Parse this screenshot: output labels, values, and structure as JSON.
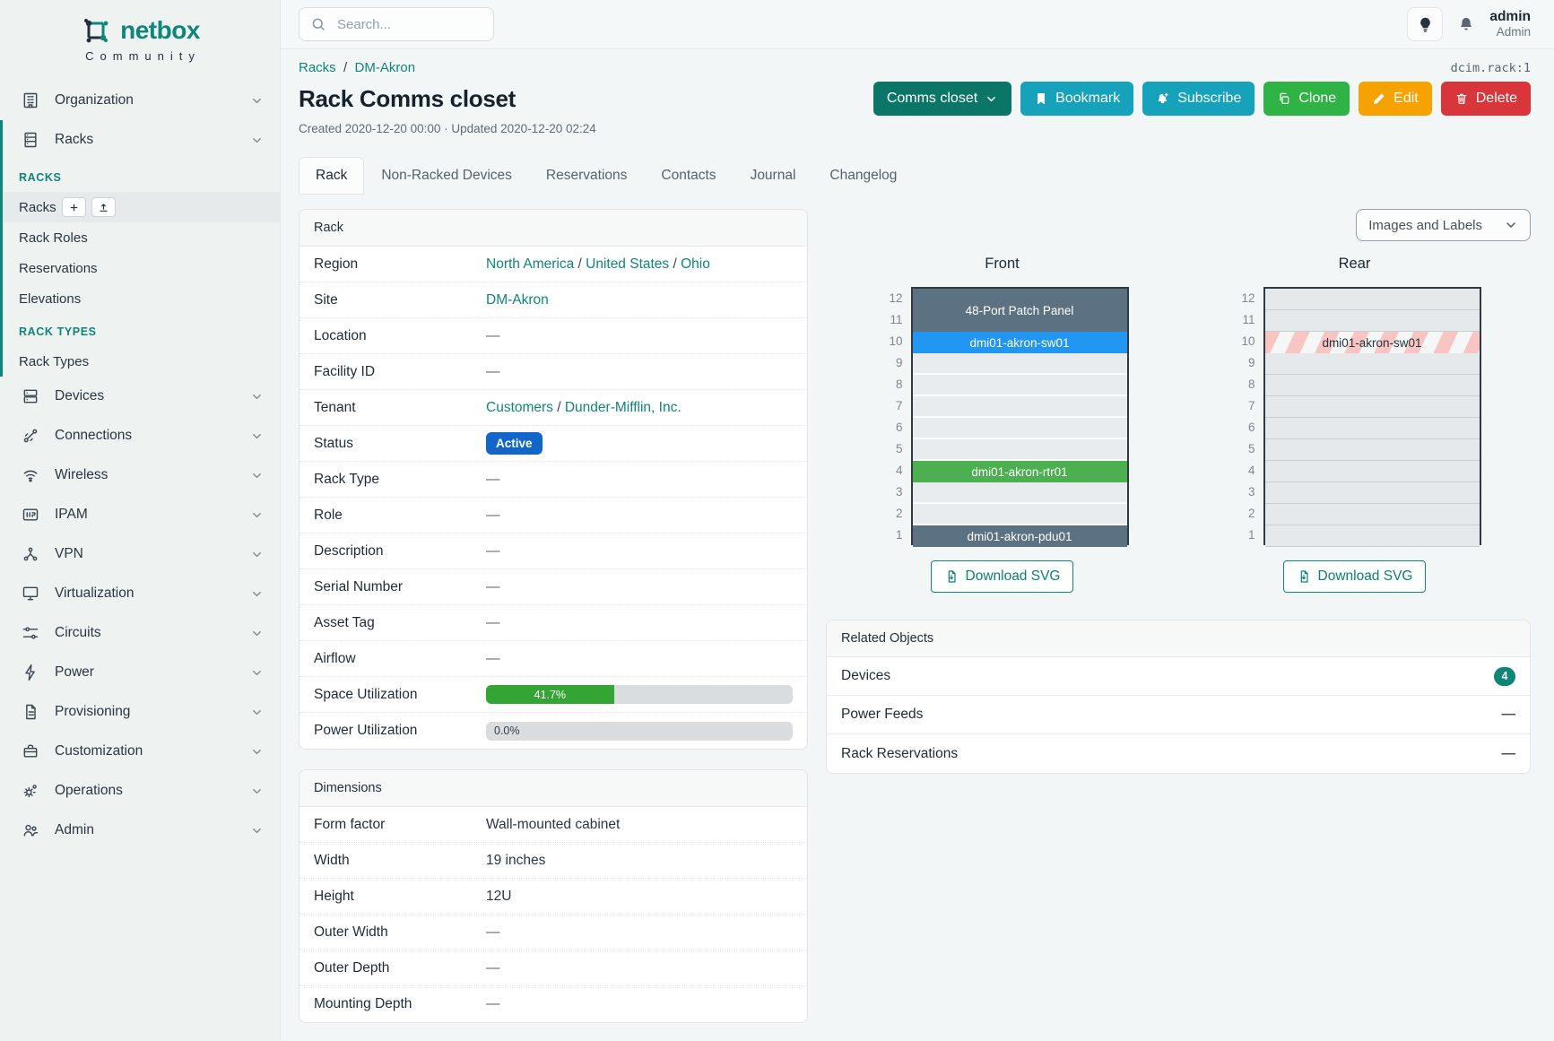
{
  "brand": {
    "name": "netbox",
    "community": "Community"
  },
  "topbar": {
    "search_placeholder": "Search...",
    "username": "admin",
    "role": "Admin"
  },
  "object_id": "dcim.rack:1",
  "breadcrumb": {
    "items": [
      "Racks",
      "DM-Akron"
    ],
    "separator": "/"
  },
  "page": {
    "title": "Rack Comms closet",
    "meta": "Created 2020-12-20 00:00 · Updated 2020-12-20 02:24"
  },
  "actions": [
    {
      "label": "Comms closet",
      "icon": "chevron-down-icon",
      "icon_position": "after",
      "style": "dark-teal",
      "name": "comms-closet-dropdown"
    },
    {
      "label": "Bookmark",
      "icon": "bookmark-icon",
      "style": "cyan",
      "name": "bookmark-button"
    },
    {
      "label": "Subscribe",
      "icon": "bell-plus-icon",
      "style": "cyan",
      "name": "subscribe-button"
    },
    {
      "label": "Clone",
      "icon": "copy-icon",
      "style": "green",
      "name": "clone-button"
    },
    {
      "label": "Edit",
      "icon": "pencil-icon",
      "style": "yellow",
      "name": "edit-button"
    },
    {
      "label": "Delete",
      "icon": "trash-icon",
      "style": "red",
      "name": "delete-button"
    }
  ],
  "tabs": [
    {
      "label": "Rack",
      "active": true
    },
    {
      "label": "Non-Racked Devices",
      "active": false
    },
    {
      "label": "Reservations",
      "active": false
    },
    {
      "label": "Contacts",
      "active": false
    },
    {
      "label": "Journal",
      "active": false
    },
    {
      "label": "Changelog",
      "active": false
    }
  ],
  "sidebar": {
    "items_before": [
      {
        "label": "Organization",
        "icon": "building-icon"
      }
    ],
    "expanded_item": {
      "label": "Racks",
      "icon": "rack-icon"
    },
    "subsections": [
      {
        "heading": "RACKS",
        "items": [
          {
            "label": "Racks",
            "active": true,
            "buttons": [
              {
                "icon": "plus-icon",
                "name": "add-rack-button"
              },
              {
                "icon": "upload-icon",
                "name": "import-rack-button"
              }
            ]
          },
          {
            "label": "Rack Roles",
            "active": false
          },
          {
            "label": "Reservations",
            "active": false
          },
          {
            "label": "Elevations",
            "active": false
          }
        ]
      },
      {
        "heading": "RACK TYPES",
        "items": [
          {
            "label": "Rack Types",
            "active": false
          }
        ]
      }
    ],
    "items_after": [
      {
        "label": "Devices",
        "icon": "server-icon"
      },
      {
        "label": "Connections",
        "icon": "plug-icon"
      },
      {
        "label": "Wireless",
        "icon": "wifi-icon"
      },
      {
        "label": "IPAM",
        "icon": "ipam-icon"
      },
      {
        "label": "VPN",
        "icon": "network-nodes-icon"
      },
      {
        "label": "Virtualization",
        "icon": "monitor-icon"
      },
      {
        "label": "Circuits",
        "icon": "circuit-icon"
      },
      {
        "label": "Power",
        "icon": "bolt-icon"
      },
      {
        "label": "Provisioning",
        "icon": "document-icon"
      },
      {
        "label": "Customization",
        "icon": "briefcase-icon"
      },
      {
        "label": "Operations",
        "icon": "gears-icon"
      },
      {
        "label": "Admin",
        "icon": "users-icon"
      }
    ]
  },
  "rack_panel": {
    "title": "Rack",
    "rows": [
      {
        "label": "Region",
        "type": "links",
        "parts": [
          "North America",
          "United States",
          "Ohio"
        ]
      },
      {
        "label": "Site",
        "type": "links",
        "parts": [
          "DM-Akron"
        ]
      },
      {
        "label": "Location",
        "type": "dash"
      },
      {
        "label": "Facility ID",
        "type": "dash"
      },
      {
        "label": "Tenant",
        "type": "links",
        "parts": [
          "Customers",
          "Dunder-Mifflin, Inc."
        ]
      },
      {
        "label": "Status",
        "type": "badge",
        "value": "Active",
        "color": "#1266c9"
      },
      {
        "label": "Rack Type",
        "type": "dash"
      },
      {
        "label": "Role",
        "type": "dash"
      },
      {
        "label": "Description",
        "type": "dash"
      },
      {
        "label": "Serial Number",
        "type": "dash"
      },
      {
        "label": "Asset Tag",
        "type": "dash"
      },
      {
        "label": "Airflow",
        "type": "dash"
      },
      {
        "label": "Space Utilization",
        "type": "progress",
        "percent": 41.7,
        "text": "41.7%",
        "color": "#34a534"
      },
      {
        "label": "Power Utilization",
        "type": "progress",
        "percent": 0,
        "text": "0.0%",
        "color": "#34a534"
      }
    ]
  },
  "dimensions_panel": {
    "title": "Dimensions",
    "rows": [
      {
        "label": "Form factor",
        "type": "text",
        "value": "Wall-mounted cabinet"
      },
      {
        "label": "Width",
        "type": "text",
        "value": "19 inches"
      },
      {
        "label": "Height",
        "type": "text",
        "value": "12U"
      },
      {
        "label": "Outer Width",
        "type": "dash"
      },
      {
        "label": "Outer Depth",
        "type": "dash"
      },
      {
        "label": "Mounting Depth",
        "type": "dash"
      }
    ]
  },
  "elevations": {
    "view_select": "Images and Labels",
    "download_label": "Download SVG",
    "units_total": 12,
    "views": [
      {
        "title": "Front",
        "devices": [
          {
            "name": "48-Port Patch Panel",
            "top_unit": 12,
            "u_height": 2,
            "color": "#5c7282",
            "text_color": "#ffffff"
          },
          {
            "name": "dmi01-akron-sw01",
            "top_unit": 10,
            "u_height": 1,
            "color": "#2196f3",
            "text_color": "#ffffff"
          },
          {
            "name": "dmi01-akron-rtr01",
            "top_unit": 4,
            "u_height": 1,
            "color": "#4caf50",
            "text_color": "#ffffff"
          },
          {
            "name": "dmi01-akron-pdu01",
            "top_unit": 1,
            "u_height": 1,
            "color": "#5c7282",
            "text_color": "#ffffff"
          }
        ]
      },
      {
        "title": "Rear",
        "devices": [
          {
            "name": "dmi01-akron-sw01",
            "top_unit": 10,
            "u_height": 1,
            "striped": true,
            "text_color": "#26323d"
          }
        ]
      }
    ]
  },
  "related_objects": {
    "title": "Related Objects",
    "rows": [
      {
        "label": "Devices",
        "count": 4
      },
      {
        "label": "Power Feeds",
        "count": null
      },
      {
        "label": "Rack Reservations",
        "count": null
      }
    ]
  },
  "colors": {
    "accent_teal": "#10857a",
    "status_blue": "#1266c9",
    "utilization_green": "#34a534",
    "badge_teal": "#0e8577"
  }
}
